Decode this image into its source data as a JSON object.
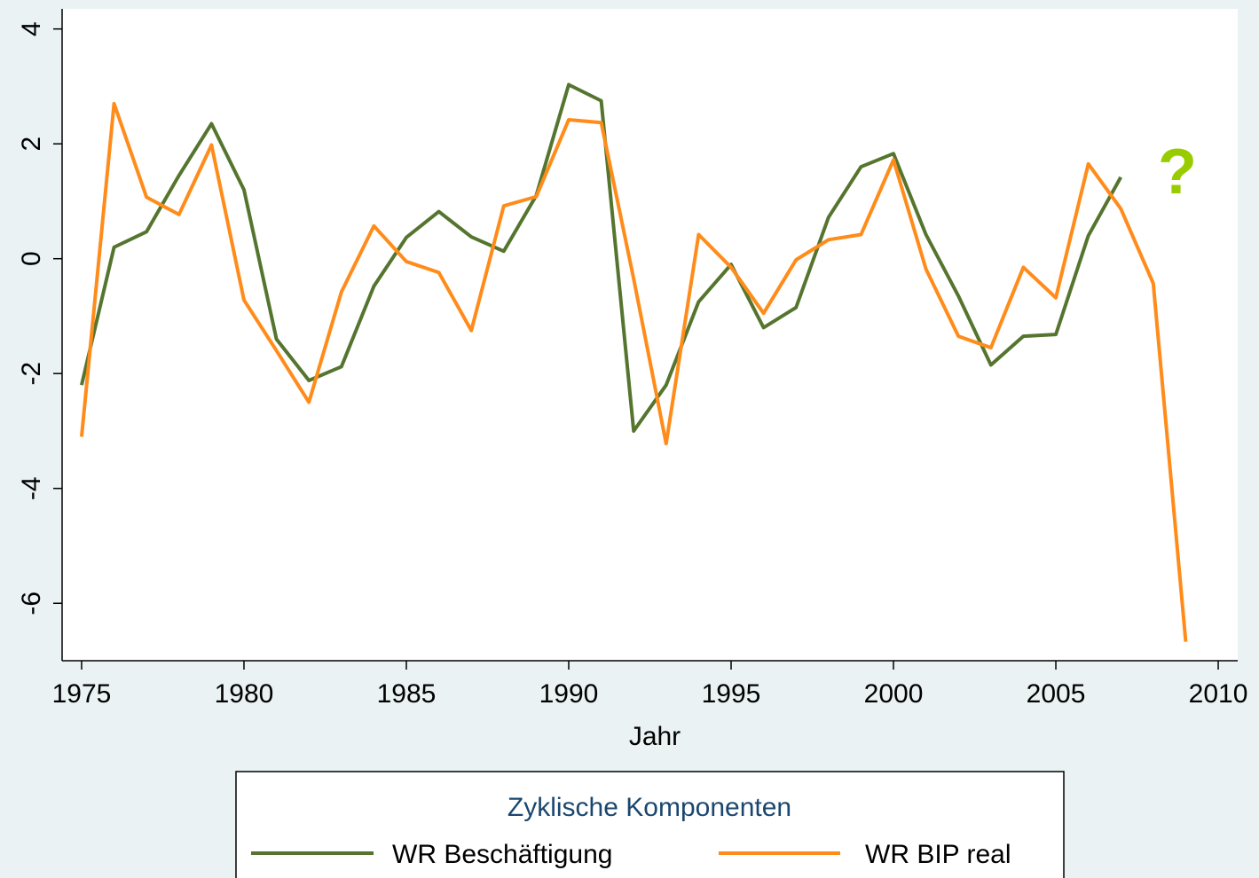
{
  "chart_data": {
    "type": "line",
    "x": [
      1975,
      1976,
      1977,
      1978,
      1979,
      1980,
      1981,
      1982,
      1983,
      1984,
      1985,
      1986,
      1987,
      1988,
      1989,
      1990,
      1991,
      1992,
      1993,
      1994,
      1995,
      1996,
      1997,
      1998,
      1999,
      2000,
      2001,
      2002,
      2003,
      2004,
      2005,
      2006,
      2007,
      2008,
      2009
    ],
    "series": [
      {
        "name": "WR Beschäftigung",
        "color": "#55752f",
        "values": [
          -2.2,
          0.2,
          0.47,
          1.45,
          2.35,
          1.2,
          -1.4,
          -2.12,
          -1.88,
          -0.48,
          0.37,
          0.82,
          0.38,
          0.13,
          1.1,
          3.03,
          2.75,
          -3.0,
          -2.2,
          -0.75,
          -0.1,
          -1.2,
          -0.85,
          0.72,
          1.6,
          1.83,
          0.42,
          -0.65,
          -1.85,
          -1.35,
          -1.32,
          0.4,
          1.42,
          null,
          null
        ]
      },
      {
        "name": "WR BIP real",
        "color": "#ff8c1a",
        "values": [
          -3.1,
          2.7,
          1.07,
          0.77,
          1.98,
          -0.72,
          -1.6,
          -2.5,
          -0.58,
          0.57,
          -0.05,
          -0.24,
          -1.25,
          0.92,
          1.08,
          2.42,
          2.37,
          -0.35,
          -3.22,
          0.42,
          -0.15,
          -0.95,
          -0.02,
          0.33,
          0.42,
          1.72,
          -0.18,
          -1.35,
          -1.55,
          -0.15,
          -0.68,
          1.65,
          0.87,
          -0.43,
          -6.67
        ]
      }
    ],
    "xlabel": "Jahr",
    "legend_title": "Zyklische Komponenten",
    "annotation": "?",
    "xlim": [
      1974.4,
      2010.6
    ],
    "xticks": [
      1975,
      1980,
      1985,
      1990,
      1995,
      2000,
      2005,
      2010
    ],
    "ylim": [
      -7,
      4.35
    ],
    "yticks": [
      -6,
      -4,
      -2,
      0,
      2,
      4
    ],
    "grid": true
  }
}
